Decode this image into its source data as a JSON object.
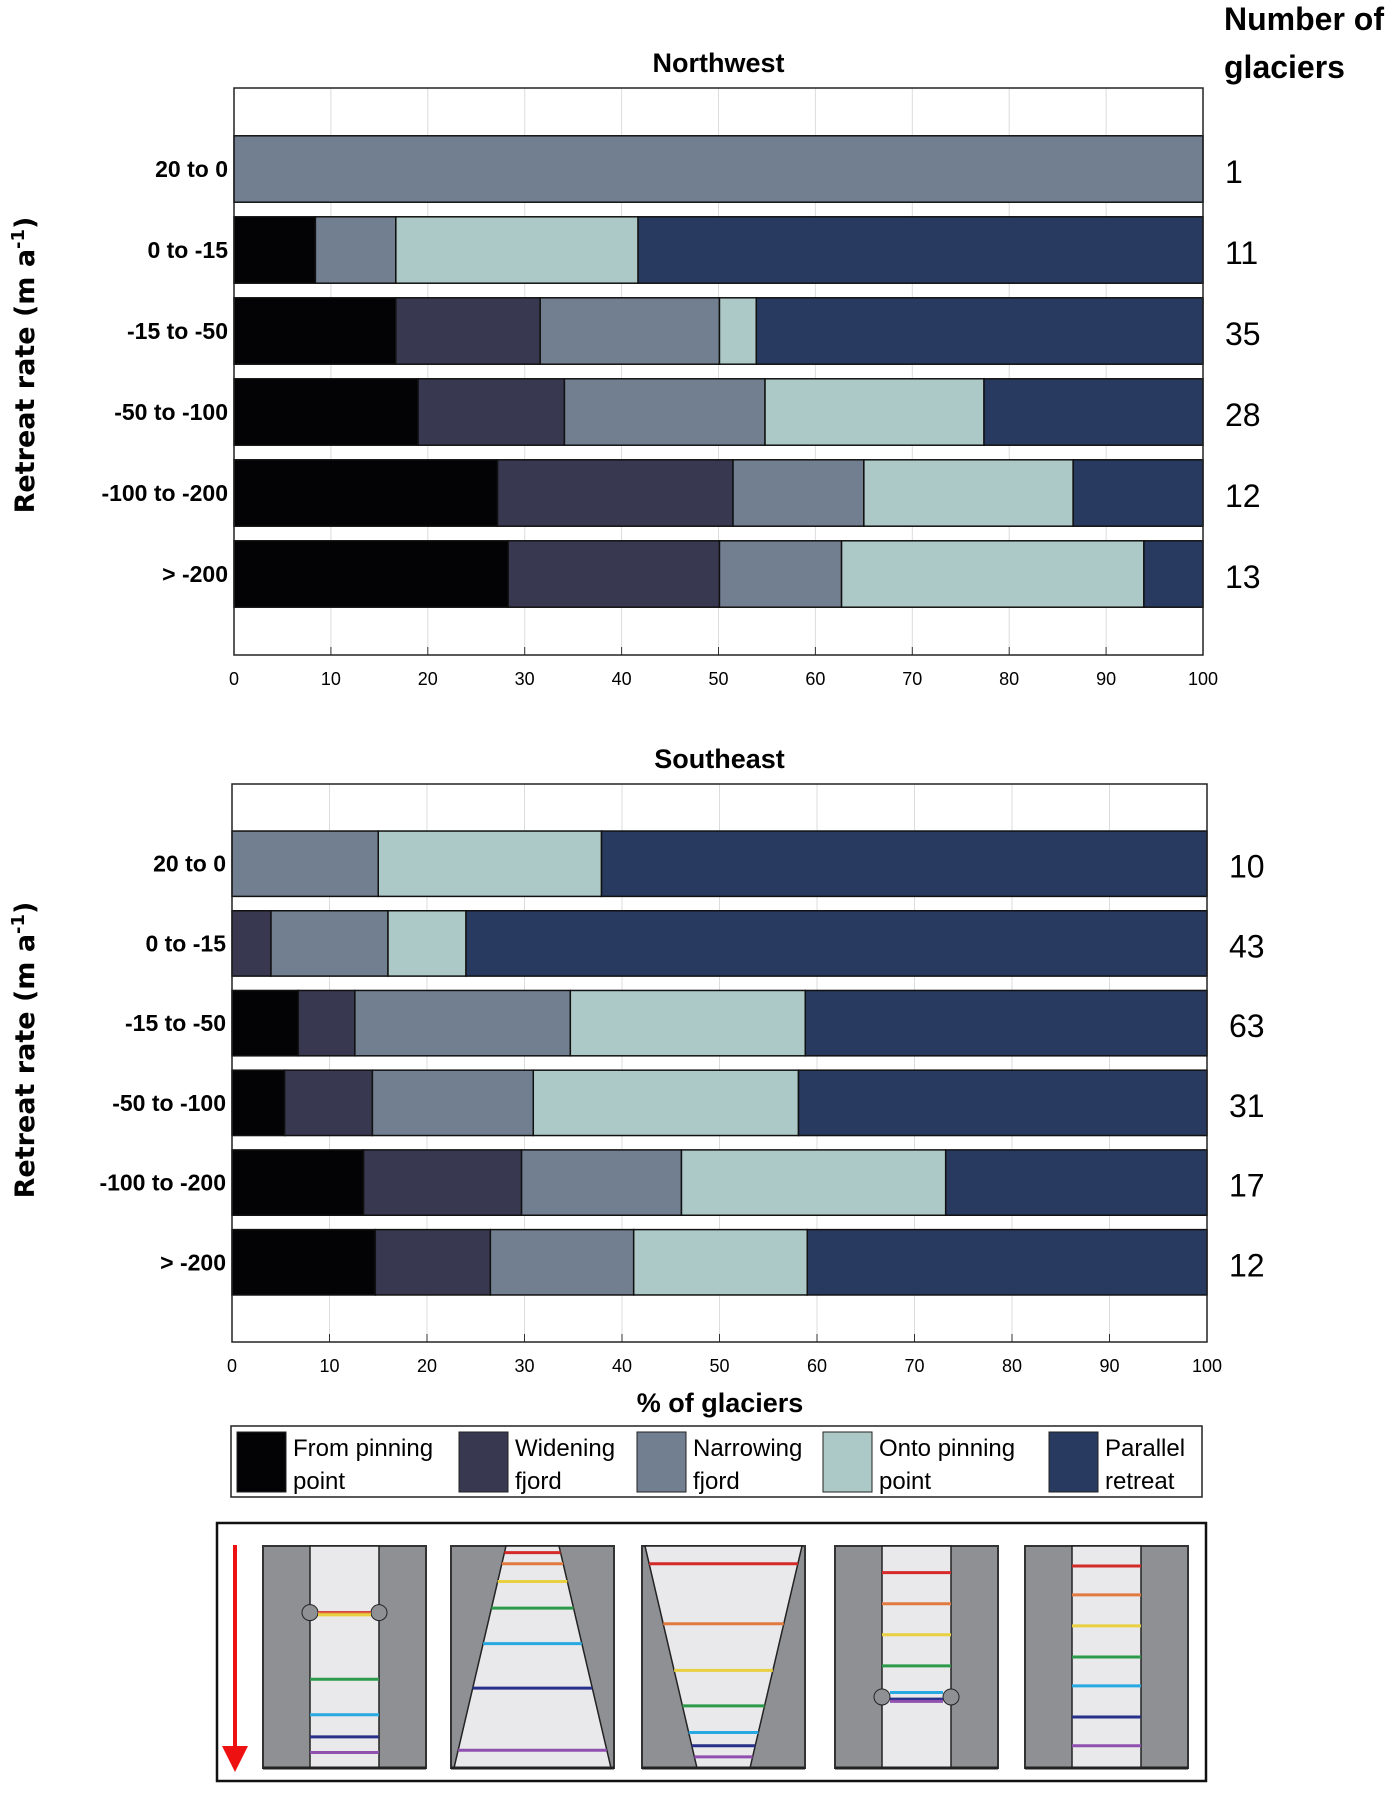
{
  "header": {
    "count_title_line1": "Number of",
    "count_title_line2": "glaciers"
  },
  "colors": {
    "from_pinning": "#030305",
    "widening": "#383950",
    "narrowing": "#717f90",
    "onto_pinning": "#adc9c7",
    "parallel": "#283a60",
    "wall": "#8f9094",
    "channel": "#e9e9eb",
    "arrow": "#ee1111"
  },
  "legend": [
    {
      "line1": "From pinning",
      "line2": "point",
      "key": "from_pinning"
    },
    {
      "line1": "Widening",
      "line2": "fjord",
      "key": "widening"
    },
    {
      "line1": "Narrowing",
      "line2": "fjord",
      "key": "narrowing"
    },
    {
      "line1": "Onto pinning",
      "line2": "point",
      "key": "onto_pinning"
    },
    {
      "line1": "Parallel",
      "line2": "retreat",
      "key": "parallel"
    }
  ],
  "chart_data": [
    {
      "type": "bar",
      "stacked": true,
      "orientation": "horizontal",
      "title": "Northwest",
      "ylabel": "Retreat rate (m a-1)",
      "ylabel_parts": [
        "Retreat rate (m a",
        "-1",
        ")"
      ],
      "xlabel": "",
      "xlim": [
        0,
        100
      ],
      "xticks": [
        "0",
        "10",
        "20",
        "30",
        "40",
        "50",
        "60",
        "70",
        "80",
        "90",
        "100"
      ],
      "grid": true,
      "categories": [
        "20 to 0",
        "0 to -15",
        "-15 to -50",
        "-50 to -100",
        "-100 to -200",
        "> -200"
      ],
      "counts": [
        "1",
        "11",
        "35",
        "28",
        "12",
        "13"
      ],
      "series": [
        {
          "name": "From pinning point",
          "key": "from_pinning",
          "values": [
            0,
            8.4,
            16.7,
            19.0,
            27.2,
            28.3
          ]
        },
        {
          "name": "Widening fjord",
          "key": "widening",
          "values": [
            0,
            0,
            14.9,
            15.1,
            24.3,
            21.8
          ]
        },
        {
          "name": "Narrowing fjord",
          "key": "narrowing",
          "values": [
            100,
            8.3,
            18.5,
            20.7,
            13.5,
            12.6
          ]
        },
        {
          "name": "Onto pinning point",
          "key": "onto_pinning",
          "values": [
            0,
            25.0,
            3.8,
            22.6,
            21.6,
            31.2
          ]
        },
        {
          "name": "Parallel retreat",
          "key": "parallel",
          "values": [
            0,
            58.3,
            46.1,
            22.6,
            13.4,
            6.1
          ]
        }
      ]
    },
    {
      "type": "bar",
      "stacked": true,
      "orientation": "horizontal",
      "title": "Southeast",
      "ylabel": "Retreat rate (m a-1)",
      "ylabel_parts": [
        "Retreat rate (m a",
        "-1",
        ")"
      ],
      "xlabel": "% of glaciers",
      "xlim": [
        0,
        100
      ],
      "xticks": [
        "0",
        "10",
        "20",
        "30",
        "40",
        "50",
        "60",
        "70",
        "80",
        "90",
        "100"
      ],
      "grid": true,
      "categories": [
        "20 to 0",
        "0 to -15",
        "-15 to -50",
        "-50 to -100",
        "-100 to -200",
        "> -200"
      ],
      "counts": [
        "10",
        "43",
        "63",
        "31",
        "17",
        "12"
      ],
      "series": [
        {
          "name": "From pinning point",
          "key": "from_pinning",
          "values": [
            0,
            0,
            6.8,
            5.4,
            13.5,
            14.7
          ]
        },
        {
          "name": "Widening fjord",
          "key": "widening",
          "values": [
            0,
            4.0,
            5.8,
            9.0,
            16.2,
            11.8
          ]
        },
        {
          "name": "Narrowing fjord",
          "key": "narrowing",
          "values": [
            15.0,
            12.0,
            22.1,
            16.5,
            16.4,
            14.7
          ]
        },
        {
          "name": "Onto pinning point",
          "key": "onto_pinning",
          "values": [
            22.9,
            8.0,
            24.1,
            27.2,
            27.1,
            17.8
          ]
        },
        {
          "name": "Parallel retreat",
          "key": "parallel",
          "values": [
            62.1,
            76.0,
            41.2,
            41.9,
            26.8,
            41.0
          ]
        }
      ]
    }
  ]
}
